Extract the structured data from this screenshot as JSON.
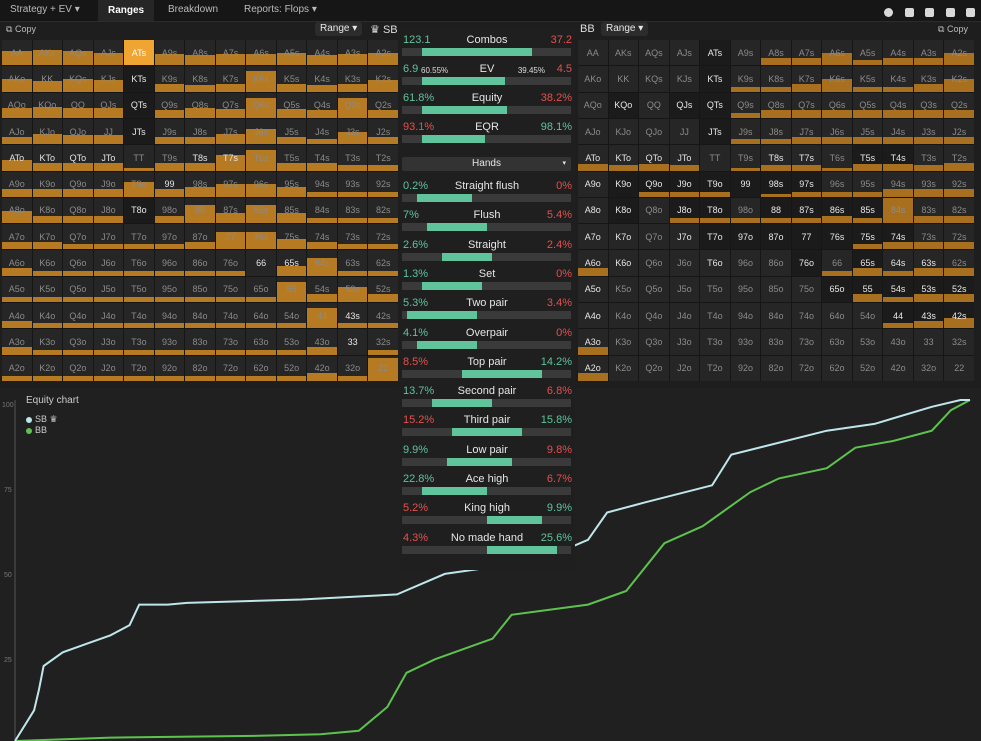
{
  "nav": {
    "tabs": [
      {
        "label": "Strategy + EV",
        "caret": "▾"
      },
      {
        "label": "Ranges"
      },
      {
        "label": "Breakdown"
      },
      {
        "label": "Reports: Flops",
        "caret": "▾"
      }
    ]
  },
  "toolbar_icons": [
    "circle-icon",
    "half-square-icon",
    "split-icon",
    "panel-icon",
    "square-icon"
  ],
  "sb": {
    "copy_label": "Copy",
    "range_label": "Range",
    "caret": "▾",
    "player_label": "SB",
    "crown": "♛"
  },
  "bb": {
    "player_label": "BB",
    "range_label": "Range",
    "caret": "▾",
    "copy_label": "Copy"
  },
  "hand_labels": [
    [
      "AA",
      "AKs",
      "AQs",
      "AJs",
      "ATs",
      "A9s",
      "A8s",
      "A7s",
      "A6s",
      "A5s",
      "A4s",
      "A3s",
      "A2s"
    ],
    [
      "AKo",
      "KK",
      "KQs",
      "KJs",
      "KTs",
      "K9s",
      "K8s",
      "K7s",
      "K6s",
      "K5s",
      "K4s",
      "K3s",
      "K2s"
    ],
    [
      "AQo",
      "KQo",
      "QQ",
      "QJs",
      "QTs",
      "Q9s",
      "Q8s",
      "Q7s",
      "Q6s",
      "Q5s",
      "Q4s",
      "Q3s",
      "Q2s"
    ],
    [
      "AJo",
      "KJo",
      "QJo",
      "JJ",
      "JTs",
      "J9s",
      "J8s",
      "J7s",
      "J6s",
      "J5s",
      "J4s",
      "J3s",
      "J2s"
    ],
    [
      "ATo",
      "KTo",
      "QTo",
      "JTo",
      "TT",
      "T9s",
      "T8s",
      "T7s",
      "T6s",
      "T5s",
      "T4s",
      "T3s",
      "T2s"
    ],
    [
      "A9o",
      "K9o",
      "Q9o",
      "J9o",
      "T9o",
      "99",
      "98s",
      "97s",
      "96s",
      "95s",
      "94s",
      "93s",
      "92s"
    ],
    [
      "A8o",
      "K8o",
      "Q8o",
      "J8o",
      "T8o",
      "98o",
      "88",
      "87s",
      "86s",
      "85s",
      "84s",
      "83s",
      "82s"
    ],
    [
      "A7o",
      "K7o",
      "Q7o",
      "J7o",
      "T7o",
      "97o",
      "87o",
      "77",
      "76s",
      "75s",
      "74s",
      "73s",
      "72s"
    ],
    [
      "A6o",
      "K6o",
      "Q6o",
      "J6o",
      "T6o",
      "96o",
      "86o",
      "76o",
      "66",
      "65s",
      "64s",
      "63s",
      "62s"
    ],
    [
      "A5o",
      "K5o",
      "Q5o",
      "J5o",
      "T5o",
      "95o",
      "85o",
      "75o",
      "65o",
      "55",
      "54s",
      "53s",
      "52s"
    ],
    [
      "A4o",
      "K4o",
      "Q4o",
      "J4o",
      "T4o",
      "94o",
      "84o",
      "74o",
      "64o",
      "54o",
      "44",
      "43s",
      "42s"
    ],
    [
      "A3o",
      "K3o",
      "Q3o",
      "J3o",
      "T3o",
      "93o",
      "83o",
      "73o",
      "63o",
      "53o",
      "43o",
      "33",
      "32s"
    ],
    [
      "A2o",
      "K2o",
      "Q2o",
      "J2o",
      "T2o",
      "92o",
      "82o",
      "72o",
      "62o",
      "52o",
      "42o",
      "32o",
      "22"
    ]
  ],
  "summary": {
    "combos": {
      "label": "Combos",
      "sb": "123.1",
      "bb": "37.2",
      "sb_share": 0.77
    },
    "ev": {
      "label": "EV",
      "sb": "6.9",
      "sb_pct": "60.55%",
      "bb_pct": "39.45%",
      "bb": "4.5",
      "sb_share": 0.61
    },
    "equity": {
      "label": "Equity",
      "sb": "61.8%",
      "bb": "38.2%",
      "sb_share": 0.62
    },
    "eqr": {
      "label": "EQR",
      "sb": "93.1%",
      "bb": "98.1%",
      "sb_share": 0.49
    }
  },
  "hands_dropdown": {
    "label": "Hands",
    "caret": "▾"
  },
  "categories": [
    {
      "name": "Straight flush",
      "sb": "0.2%",
      "bb": "0%",
      "sb_color": "g",
      "bb_color": "r"
    },
    {
      "name": "Flush",
      "sb": "7%",
      "bb": "5.4%",
      "sb_color": "g",
      "bb_color": "r"
    },
    {
      "name": "Straight",
      "sb": "2.6%",
      "bb": "2.4%",
      "sb_color": "g",
      "bb_color": "r"
    },
    {
      "name": "Set",
      "sb": "1.3%",
      "bb": "0%",
      "sb_color": "g",
      "bb_color": "r"
    },
    {
      "name": "Two pair",
      "sb": "5.3%",
      "bb": "3.4%",
      "sb_color": "g",
      "bb_color": "r"
    },
    {
      "name": "Overpair",
      "sb": "4.1%",
      "bb": "0%",
      "sb_color": "g",
      "bb_color": "r"
    },
    {
      "name": "Top pair",
      "sb": "8.5%",
      "bb": "14.2%",
      "sb_color": "r",
      "bb_color": "g"
    },
    {
      "name": "Second pair",
      "sb": "13.7%",
      "bb": "6.8%",
      "sb_color": "g",
      "bb_color": "r"
    },
    {
      "name": "Third pair",
      "sb": "15.2%",
      "bb": "15.8%",
      "sb_color": "r",
      "bb_color": "g"
    },
    {
      "name": "Low pair",
      "sb": "9.9%",
      "bb": "9.8%",
      "sb_color": "g",
      "bb_color": "r"
    },
    {
      "name": "Ace high",
      "sb": "22.8%",
      "bb": "6.7%",
      "sb_color": "g",
      "bb_color": "r"
    },
    {
      "name": "King high",
      "sb": "5.2%",
      "bb": "9.9%",
      "sb_color": "r",
      "bb_color": "g"
    },
    {
      "name": "No made hand",
      "sb": "4.3%",
      "bb": "25.6%",
      "sb_color": "r",
      "bb_color": "g"
    }
  ],
  "equity_chart": {
    "title": "Equity chart",
    "legend": [
      {
        "name": "SB",
        "suffix": "♛",
        "color": "#bfe6ea"
      },
      {
        "name": "BB",
        "color": "#5ec24e"
      }
    ],
    "yticks": [
      "100",
      "75",
      "50",
      "25"
    ],
    "colors": {
      "sb": "#bfe6ea",
      "bb": "#5ec24e"
    },
    "ylim": [
      0,
      100
    ]
  }
}
